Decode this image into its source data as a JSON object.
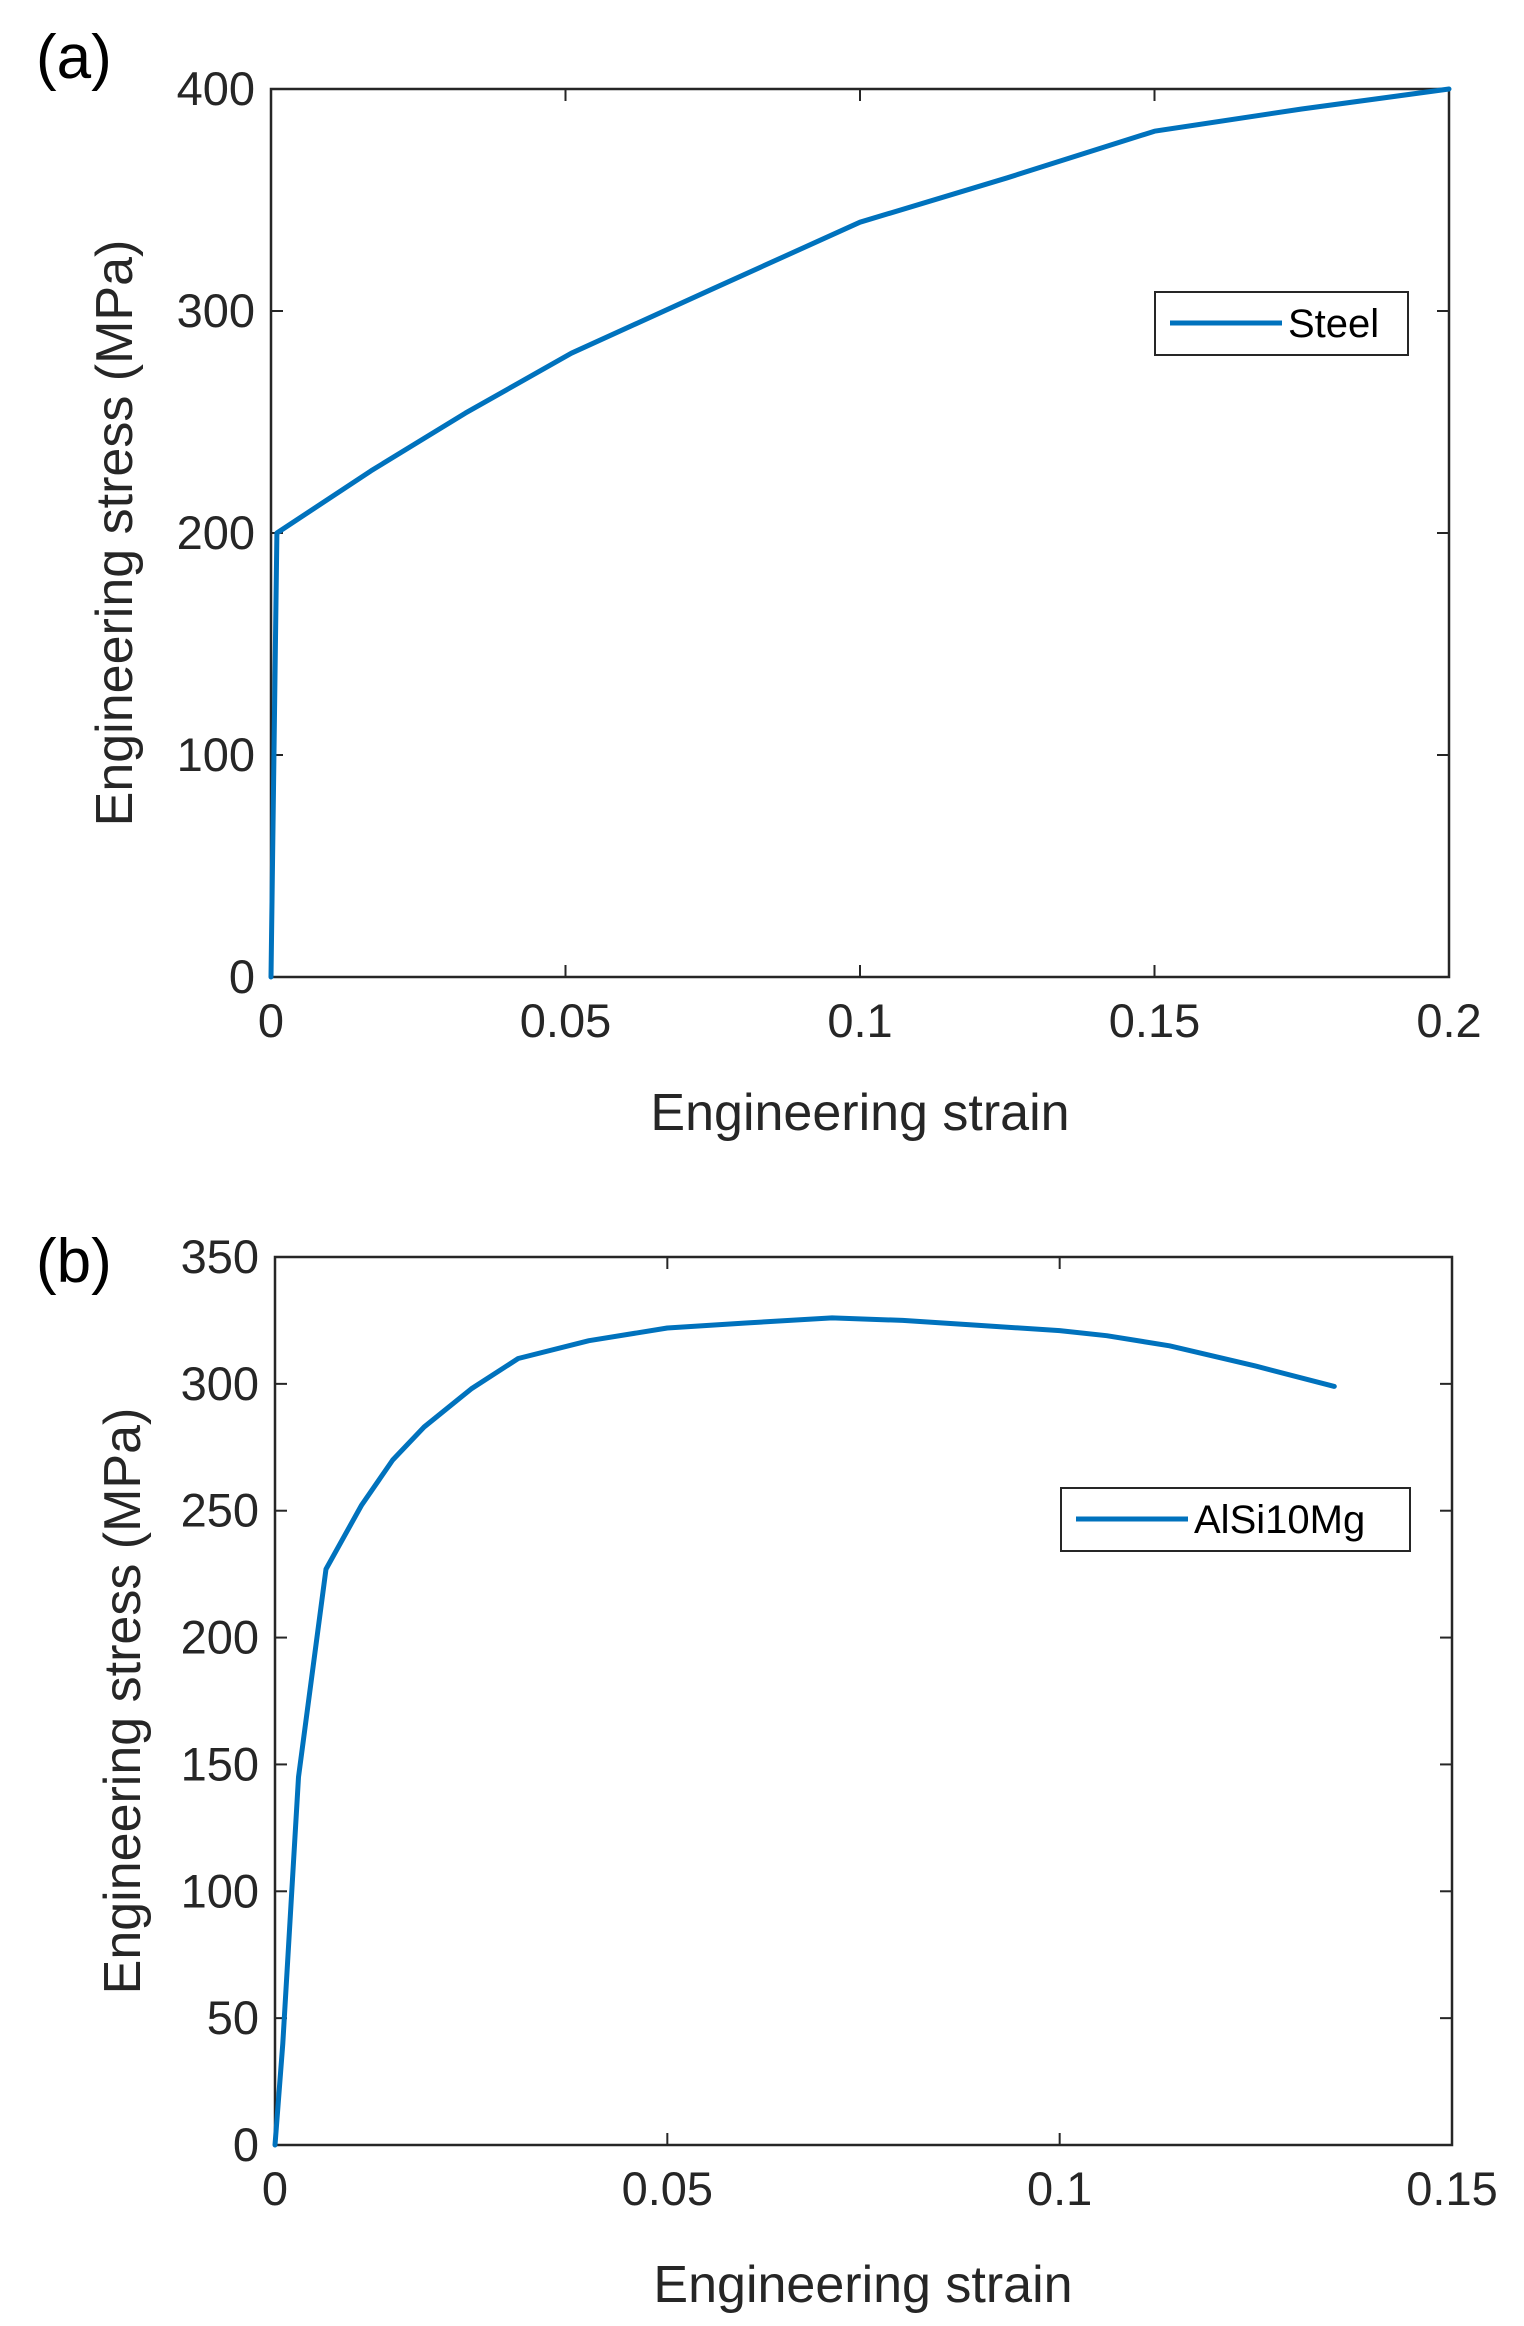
{
  "figure": {
    "line_color": "#0072BD",
    "axis_color": "#262626"
  },
  "chart_data": [
    {
      "type": "line",
      "panel_label": "(a)",
      "title": "",
      "xlabel": "Engineering strain",
      "ylabel": "Engineering stress (MPa)",
      "xlim": [
        0,
        0.2
      ],
      "ylim": [
        0,
        400
      ],
      "xticks": [
        0,
        0.05,
        0.1,
        0.15,
        0.2
      ],
      "xtick_labels": [
        "0",
        "0.05",
        "0.1",
        "0.15",
        "0.2"
      ],
      "yticks": [
        0,
        100,
        200,
        300,
        400
      ],
      "ytick_labels": [
        "0",
        "100",
        "200",
        "300",
        "400"
      ],
      "legend_position": "top-right",
      "series": [
        {
          "name": "Steel",
          "x": [
            0,
            0.001,
            0.017,
            0.033,
            0.051,
            0.075,
            0.1,
            0.125,
            0.15,
            0.175,
            0.2
          ],
          "y": [
            0,
            200,
            228,
            254,
            281,
            310,
            340,
            360,
            381,
            391,
            400
          ]
        }
      ]
    },
    {
      "type": "line",
      "panel_label": "(b)",
      "title": "",
      "xlabel": "Engineering strain",
      "ylabel": "Engineering stress (MPa)",
      "xlim": [
        0,
        0.15
      ],
      "ylim": [
        0,
        350
      ],
      "xticks": [
        0,
        0.05,
        0.1,
        0.15
      ],
      "xtick_labels": [
        "0",
        "0.05",
        "0.1",
        "0.15"
      ],
      "yticks": [
        0,
        50,
        100,
        150,
        200,
        250,
        300,
        350
      ],
      "ytick_labels": [
        "0",
        "50",
        "100",
        "150",
        "200",
        "250",
        "300",
        "350"
      ],
      "legend_position": "middle-right",
      "series": [
        {
          "name": "AlSi10Mg",
          "x": [
            0,
            0.001,
            0.003,
            0.0065,
            0.011,
            0.015,
            0.019,
            0.025,
            0.031,
            0.04,
            0.05,
            0.06,
            0.071,
            0.08,
            0.09,
            0.1,
            0.106,
            0.114,
            0.125,
            0.135
          ],
          "y": [
            0,
            40,
            145,
            227,
            252,
            270,
            283,
            298,
            310,
            317,
            322,
            324,
            326,
            325,
            323,
            321,
            319,
            315,
            307,
            299
          ]
        }
      ]
    }
  ]
}
